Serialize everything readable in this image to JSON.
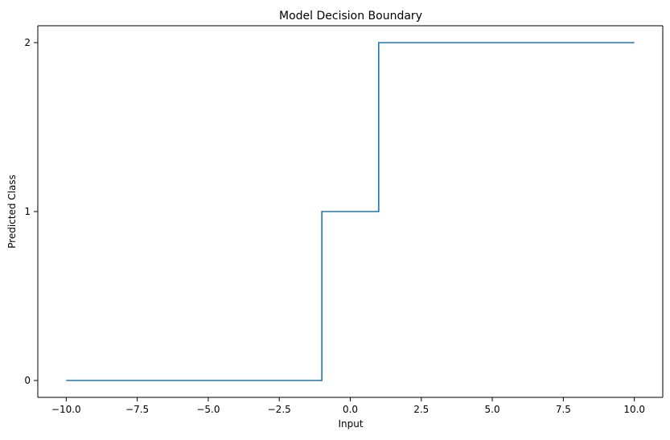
{
  "chart_data": {
    "type": "line",
    "title": "Model Decision Boundary",
    "xlabel": "Input",
    "ylabel": "Predicted Class",
    "xlim": [
      -11,
      11
    ],
    "ylim": [
      -0.1,
      2.1
    ],
    "x_ticks": [
      -10.0,
      -7.5,
      -5.0,
      -2.5,
      0.0,
      2.5,
      5.0,
      7.5,
      10.0
    ],
    "x_tick_labels": [
      "−10.0",
      "−7.5",
      "−5.0",
      "−2.5",
      "0.0",
      "2.5",
      "5.0",
      "7.5",
      "10.0"
    ],
    "y_ticks": [
      0,
      1,
      2
    ],
    "y_tick_labels": [
      "0",
      "1",
      "2"
    ],
    "grid": false,
    "legend": "none",
    "series": [
      {
        "color": "#1f77b4",
        "x": [
          -10,
          -1,
          -1,
          1,
          1,
          10
        ],
        "y": [
          0,
          0,
          1,
          1,
          2,
          2
        ]
      }
    ]
  }
}
